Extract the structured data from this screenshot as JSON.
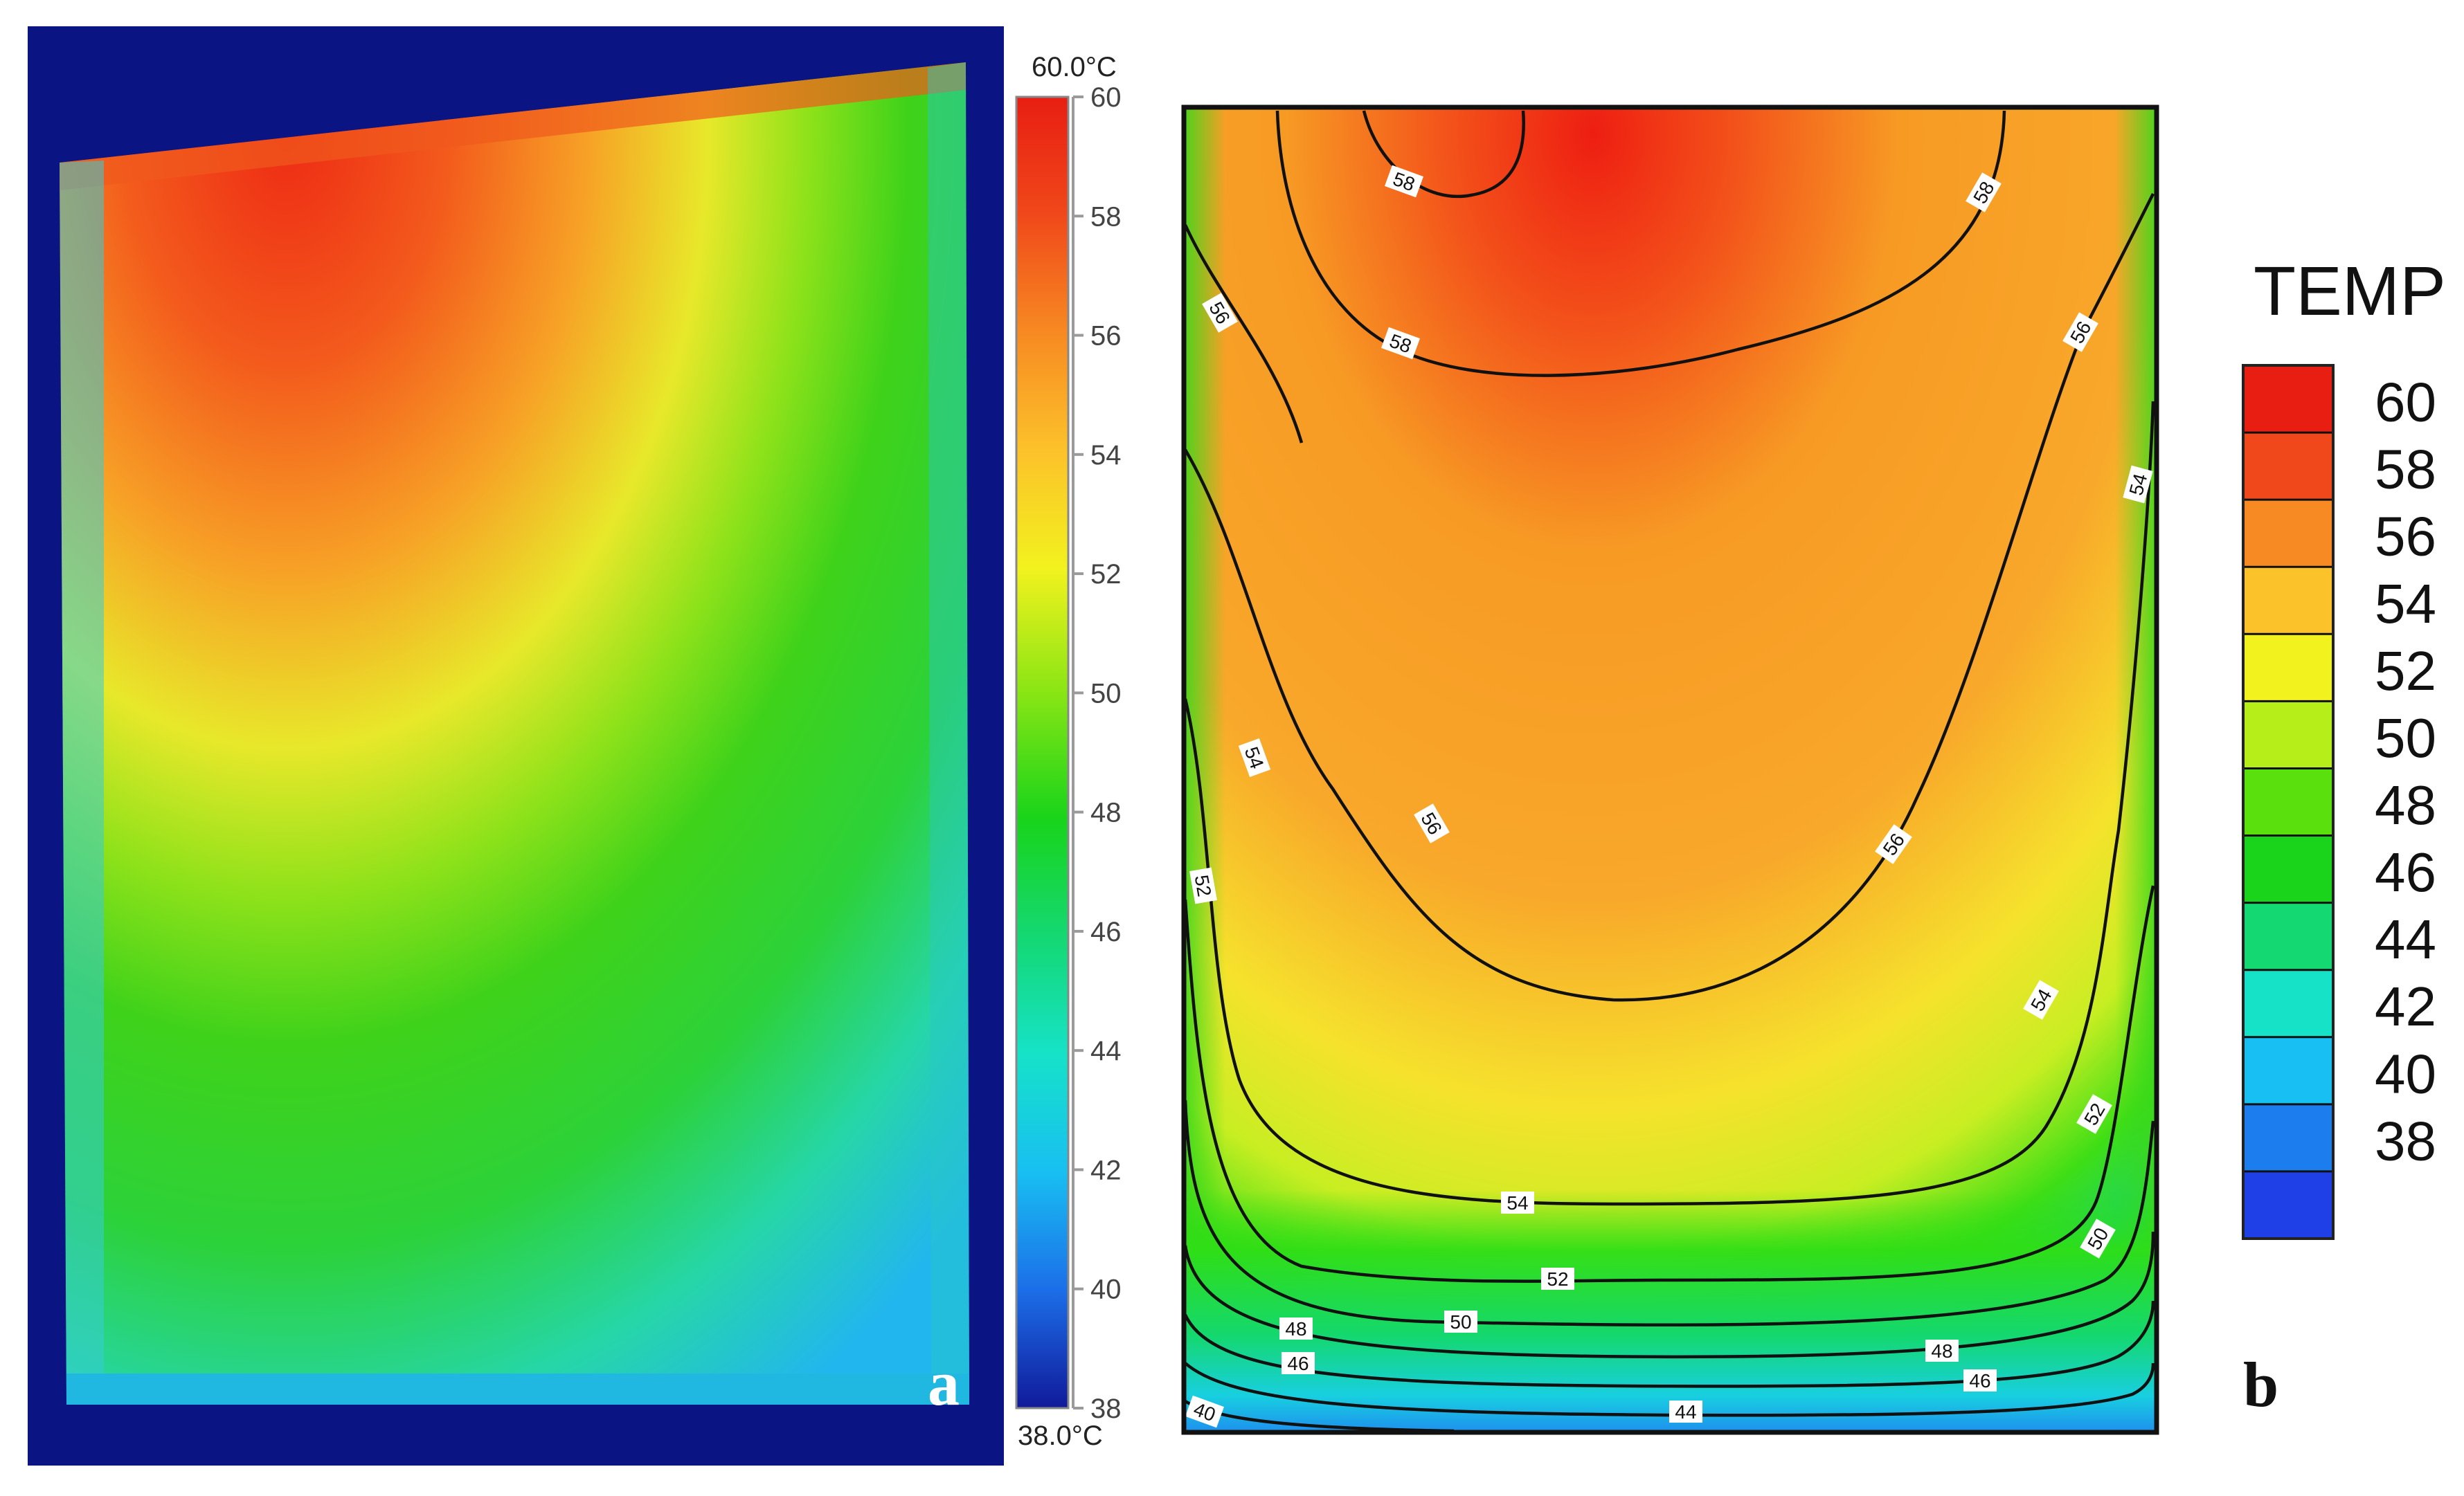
{
  "panel_a": {
    "letter": "a",
    "colorbar": {
      "max_label": "60.0°C",
      "min_label": "38.0°C",
      "ticks": [
        "60",
        "58",
        "56",
        "54",
        "52",
        "50",
        "48",
        "46",
        "44",
        "42",
        "40",
        "38"
      ]
    }
  },
  "panel_b": {
    "letter": "b",
    "legend": {
      "title": "TEMP",
      "ticks": [
        "60",
        "58",
        "56",
        "54",
        "52",
        "50",
        "48",
        "46",
        "44",
        "42",
        "40",
        "38"
      ],
      "colors": [
        "#e81e12",
        "#f0481a",
        "#f78a22",
        "#fcc22a",
        "#f2f21e",
        "#b6ee1a",
        "#5ae00c",
        "#19d41a",
        "#14d872",
        "#16e2c8",
        "#18bff2",
        "#1c7eee",
        "#1f40e6"
      ]
    },
    "contour_labels": {
      "c58_top": "58",
      "c58_tr": "58",
      "c58_mid": "58",
      "c56_l": "56",
      "c56_r": "56",
      "c54_r": "54",
      "c54_l": "54",
      "c56_ml": "56",
      "c56_mr": "56",
      "c52_l": "52",
      "c54_mr": "54",
      "c52_r": "52",
      "c54_b": "54",
      "c50_r": "50",
      "c52_b": "52",
      "c50_b": "50",
      "c48_l": "48",
      "c48_r": "48",
      "c46_l": "46",
      "c46_r": "46",
      "c40_l": "40",
      "c44_b": "44"
    }
  }
}
